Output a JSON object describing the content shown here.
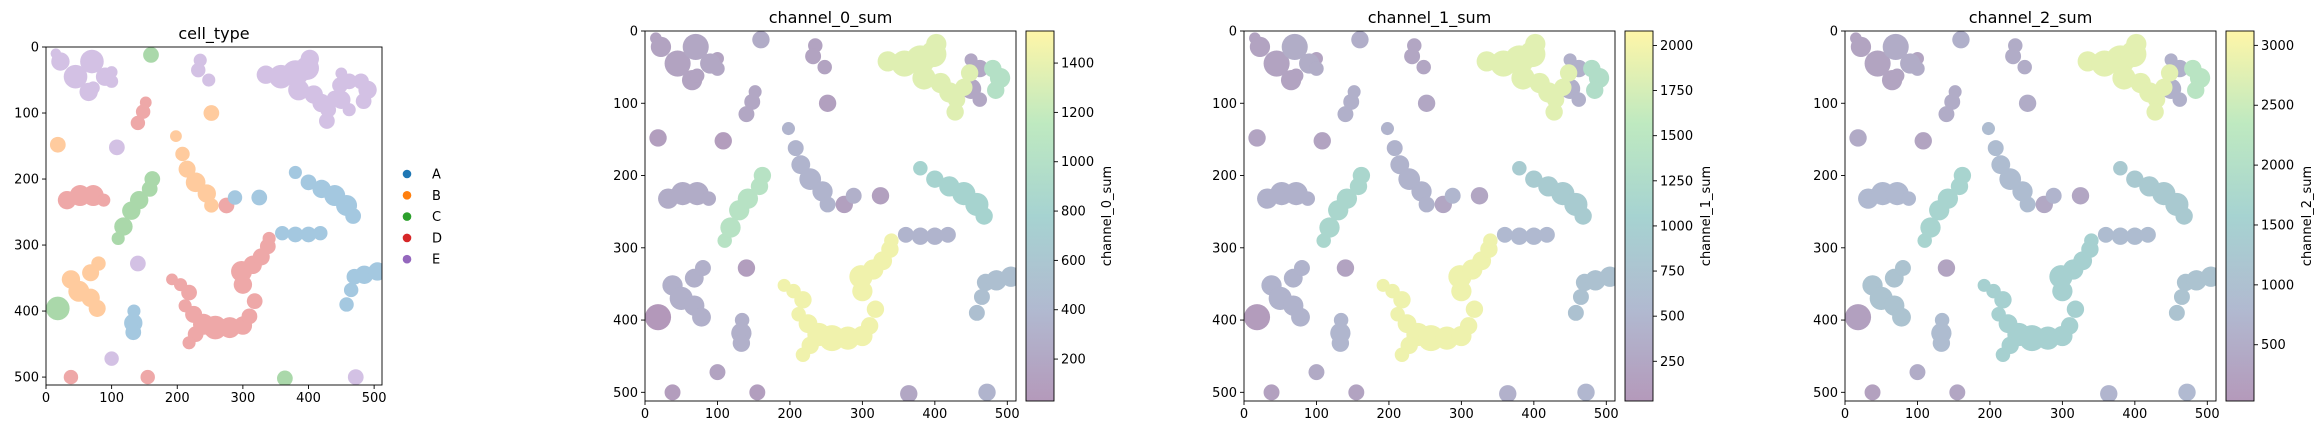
{
  "chart_data": [
    {
      "type": "scatter",
      "title": "cell_type",
      "xlim": [
        0,
        512
      ],
      "ylim": [
        512,
        0
      ],
      "xticks": [
        0,
        100,
        200,
        300,
        400,
        500
      ],
      "yticks": [
        0,
        100,
        200,
        300,
        400,
        500
      ],
      "legend": {
        "placement": "right",
        "entries": [
          {
            "label": "A",
            "color": "#1f77b4"
          },
          {
            "label": "B",
            "color": "#ff7f0e"
          },
          {
            "label": "C",
            "color": "#2ca02c"
          },
          {
            "label": "D",
            "color": "#d62728"
          },
          {
            "label": "E",
            "color": "#9467bd"
          }
        ]
      }
    },
    {
      "type": "heatmap",
      "title": "channel_0_sum",
      "xlim": [
        0,
        512
      ],
      "ylim": [
        512,
        0
      ],
      "xticks": [
        0,
        100,
        200,
        300,
        400,
        500
      ],
      "yticks": [
        0,
        100,
        200,
        300,
        400,
        500
      ],
      "colorbar": {
        "label": "channel_0_sum",
        "min": 30,
        "max": 1530,
        "ticks": [
          200,
          400,
          600,
          800,
          1000,
          1200,
          1400
        ]
      }
    },
    {
      "type": "heatmap",
      "title": "channel_1_sum",
      "xlim": [
        0,
        512
      ],
      "ylim": [
        512,
        0
      ],
      "xticks": [
        0,
        100,
        200,
        300,
        400,
        500
      ],
      "yticks": [
        0,
        100,
        200,
        300,
        400,
        500
      ],
      "colorbar": {
        "label": "channel_1_sum",
        "min": 30,
        "max": 2080,
        "ticks": [
          250,
          500,
          750,
          1000,
          1250,
          1500,
          1750,
          2000
        ]
      }
    },
    {
      "type": "heatmap",
      "title": "channel_2_sum",
      "xlim": [
        0,
        512
      ],
      "ylim": [
        512,
        0
      ],
      "xticks": [
        0,
        100,
        200,
        300,
        400,
        500
      ],
      "yticks": [
        0,
        100,
        200,
        300,
        400,
        500
      ],
      "colorbar": {
        "label": "channel_2_sum",
        "min": 30,
        "max": 3120,
        "ticks": [
          500,
          1000,
          1500,
          2000,
          2500,
          3000
        ]
      }
    }
  ],
  "segments": [
    {
      "id": "s1",
      "type": "E",
      "ch": [
        150,
        200,
        300
      ],
      "circles": [
        [
          15,
          10,
          8
        ],
        [
          22,
          22,
          14
        ],
        [
          45,
          45,
          18
        ],
        [
          65,
          68,
          14
        ],
        [
          72,
          62,
          10
        ],
        [
          100,
          38,
          9
        ]
      ]
    },
    {
      "id": "s2",
      "type": "E",
      "ch": [
        200,
        350,
        500
      ],
      "circles": [
        [
          70,
          22,
          18
        ],
        [
          90,
          45,
          14
        ],
        [
          100,
          52,
          10
        ]
      ]
    },
    {
      "id": "s3",
      "type": "E",
      "ch": [
        80,
        200,
        300
      ],
      "circles": [
        [
          108,
          152,
          12
        ]
      ]
    },
    {
      "id": "s4",
      "type": "C",
      "ch": [
        250,
        380,
        600
      ],
      "circles": [
        [
          160,
          12,
          12
        ]
      ]
    },
    {
      "id": "s5",
      "type": "D",
      "ch": [
        200,
        400,
        500
      ],
      "circles": [
        [
          140,
          115,
          11
        ],
        [
          148,
          98,
          11
        ],
        [
          152,
          84,
          9
        ]
      ]
    },
    {
      "id": "s6",
      "type": "B",
      "ch": [
        100,
        220,
        450
      ],
      "circles": [
        [
          18,
          148,
          12
        ]
      ]
    },
    {
      "id": "s7",
      "type": "B",
      "ch": [
        120,
        260,
        500
      ],
      "circles": [
        [
          252,
          100,
          12
        ]
      ]
    },
    {
      "id": "s8",
      "type": "D",
      "ch": [
        250,
        420,
        800
      ],
      "circles": [
        [
          32,
          232,
          14
        ],
        [
          52,
          225,
          16
        ],
        [
          72,
          225,
          16
        ],
        [
          88,
          232,
          10
        ]
      ]
    },
    {
      "id": "s9",
      "type": "C",
      "ch": [
        1050,
        1150,
        1650
      ],
      "circles": [
        [
          110,
          290,
          10
        ],
        [
          118,
          272,
          14
        ],
        [
          130,
          248,
          14
        ],
        [
          142,
          232,
          14
        ],
        [
          158,
          215,
          12
        ],
        [
          162,
          200,
          12
        ]
      ]
    },
    {
      "id": "s10",
      "type": "B",
      "ch": [
        350,
        450,
        900
      ],
      "circles": [
        [
          198,
          135,
          9
        ],
        [
          208,
          162,
          11
        ],
        [
          215,
          185,
          13
        ],
        [
          228,
          205,
          15
        ],
        [
          245,
          222,
          14
        ],
        [
          252,
          240,
          11
        ]
      ]
    },
    {
      "id": "s11",
      "type": "D",
      "ch": [
        120,
        250,
        400
      ],
      "circles": [
        [
          275,
          240,
          12
        ]
      ]
    },
    {
      "id": "s12",
      "type": "A",
      "ch": [
        120,
        240,
        350
      ],
      "circles": [
        [
          325,
          228,
          12
        ]
      ]
    },
    {
      "id": "s13",
      "type": "A",
      "ch": [
        350,
        550,
        900
      ],
      "circles": [
        [
          360,
          282,
          11
        ],
        [
          380,
          284,
          12
        ],
        [
          400,
          284,
          12
        ],
        [
          418,
          282,
          11
        ]
      ]
    },
    {
      "id": "s14",
      "type": "A",
      "ch": [
        800,
        900,
        1300
      ],
      "circles": [
        [
          380,
          190,
          10
        ],
        [
          400,
          205,
          12
        ],
        [
          420,
          215,
          14
        ],
        [
          440,
          225,
          16
        ],
        [
          458,
          240,
          16
        ],
        [
          468,
          256,
          12
        ]
      ]
    },
    {
      "id": "s15",
      "type": "E",
      "ch": [
        200,
        400,
        600
      ],
      "circles": [
        [
          450,
          40,
          9
        ],
        [
          462,
          52,
          12
        ],
        [
          450,
          80,
          14
        ],
        [
          462,
          95,
          10
        ]
      ]
    },
    {
      "id": "s16",
      "type": "E",
      "ch": [
        1350,
        1850,
        2800
      ],
      "circles": [
        [
          335,
          42,
          14
        ],
        [
          358,
          45,
          18
        ],
        [
          380,
          40,
          20
        ],
        [
          398,
          32,
          18
        ],
        [
          402,
          18,
          14
        ],
        [
          385,
          65,
          16
        ],
        [
          408,
          72,
          14
        ],
        [
          420,
          85,
          14
        ],
        [
          430,
          95,
          12
        ],
        [
          428,
          112,
          12
        ],
        [
          440,
          78,
          12
        ],
        [
          448,
          58,
          12
        ]
      ]
    },
    {
      "id": "s17",
      "type": "E",
      "ch": [
        150,
        250,
        500
      ],
      "circles": [
        [
          235,
          20,
          10
        ],
        [
          232,
          35,
          11
        ],
        [
          248,
          50,
          10
        ]
      ]
    },
    {
      "id": "s18",
      "type": "E",
      "ch": [
        1000,
        1300,
        2200
      ],
      "circles": [
        [
          480,
          52,
          12
        ],
        [
          490,
          65,
          14
        ],
        [
          484,
          82,
          12
        ]
      ]
    },
    {
      "id": "s19",
      "type": "B",
      "ch": [
        300,
        450,
        1100
      ],
      "circles": [
        [
          38,
          352,
          14
        ],
        [
          50,
          370,
          16
        ],
        [
          68,
          380,
          14
        ],
        [
          78,
          396,
          13
        ],
        [
          68,
          342,
          13
        ],
        [
          80,
          328,
          11
        ]
      ]
    },
    {
      "id": "s20",
      "type": "C",
      "ch": [
        30,
        80,
        200
      ],
      "circles": [
        [
          18,
          396,
          18
        ]
      ]
    },
    {
      "id": "s21",
      "type": "E",
      "ch": [
        100,
        200,
        300
      ],
      "circles": [
        [
          140,
          328,
          12
        ]
      ]
    },
    {
      "id": "s22",
      "type": "A",
      "ch": [
        300,
        500,
        900
      ],
      "circles": [
        [
          134,
          400,
          10
        ],
        [
          133,
          418,
          14
        ],
        [
          133,
          432,
          12
        ]
      ]
    },
    {
      "id": "s23",
      "type": "D",
      "ch": [
        1450,
        1950,
        1500
      ],
      "circles": [
        [
          192,
          352,
          9
        ],
        [
          205,
          360,
          10
        ],
        [
          218,
          372,
          12
        ],
        [
          212,
          392,
          10
        ],
        [
          225,
          405,
          13
        ],
        [
          240,
          420,
          16
        ],
        [
          258,
          425,
          18
        ],
        [
          280,
          425,
          16
        ],
        [
          300,
          422,
          14
        ],
        [
          310,
          408,
          12
        ],
        [
          228,
          435,
          12
        ],
        [
          218,
          448,
          10
        ],
        [
          318,
          385,
          12
        ],
        [
          300,
          360,
          14
        ],
        [
          298,
          340,
          16
        ],
        [
          315,
          330,
          14
        ],
        [
          328,
          318,
          13
        ],
        [
          338,
          302,
          12
        ],
        [
          340,
          290,
          10
        ]
      ]
    },
    {
      "id": "s24",
      "type": "C",
      "ch": [
        200,
        400,
        700
      ],
      "circles": [
        [
          364,
          502,
          12
        ]
      ]
    },
    {
      "id": "s25",
      "type": "A",
      "ch": [
        500,
        700,
        1100
      ],
      "circles": [
        [
          470,
          348,
          12
        ],
        [
          485,
          345,
          14
        ],
        [
          505,
          340,
          14
        ],
        [
          465,
          368,
          11
        ],
        [
          458,
          390,
          11
        ]
      ]
    },
    {
      "id": "s26",
      "type": "E",
      "ch": [
        150,
        300,
        500
      ],
      "circles": [
        [
          100,
          472,
          11
        ]
      ]
    },
    {
      "id": "s27",
      "type": "D",
      "ch": [
        80,
        150,
        200
      ],
      "circles": [
        [
          38,
          500,
          11
        ]
      ]
    },
    {
      "id": "s28",
      "type": "D",
      "ch": [
        100,
        200,
        350
      ],
      "circles": [
        [
          155,
          500,
          11
        ]
      ]
    },
    {
      "id": "s29",
      "type": "E",
      "ch": [
        350,
        500,
        800
      ],
      "circles": [
        [
          472,
          500,
          12
        ]
      ]
    },
    {
      "id": "s30",
      "type": "A",
      "ch": [
        300,
        500,
        700
      ],
      "circles": [
        [
          288,
          228,
          11
        ]
      ]
    }
  ]
}
